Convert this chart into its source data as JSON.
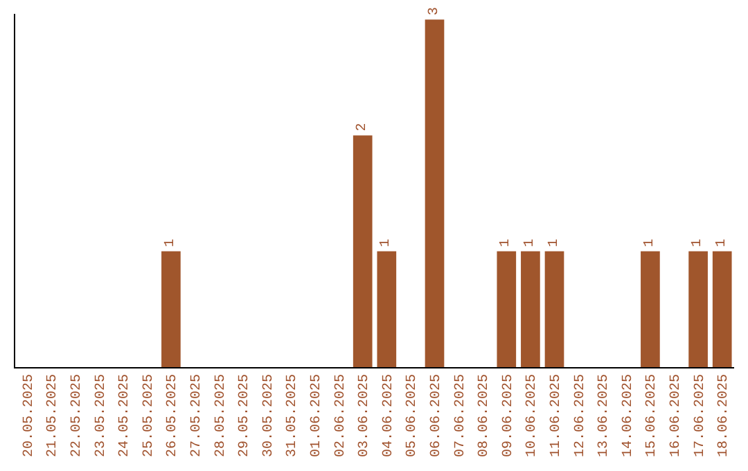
{
  "chart_data": {
    "type": "bar",
    "categories": [
      "20.05.2025",
      "21.05.2025",
      "22.05.2025",
      "23.05.2025",
      "24.05.2025",
      "25.05.2025",
      "26.05.2025",
      "27.05.2025",
      "28.05.2025",
      "29.05.2025",
      "30.05.2025",
      "31.05.2025",
      "01.06.2025",
      "02.06.2025",
      "03.06.2025",
      "04.06.2025",
      "05.06.2025",
      "06.06.2025",
      "07.06.2025",
      "08.06.2025",
      "09.06.2025",
      "10.06.2025",
      "11.06.2025",
      "12.06.2025",
      "13.06.2025",
      "14.06.2025",
      "15.06.2025",
      "16.06.2025",
      "17.06.2025",
      "18.06.2025"
    ],
    "values": [
      0,
      0,
      0,
      0,
      0,
      0,
      1,
      0,
      0,
      0,
      0,
      0,
      0,
      0,
      2,
      1,
      0,
      3,
      0,
      0,
      1,
      1,
      1,
      0,
      0,
      0,
      1,
      0,
      1,
      1
    ],
    "value_labels": [
      null,
      null,
      null,
      null,
      null,
      null,
      "1",
      null,
      null,
      null,
      null,
      null,
      null,
      null,
      "2",
      "1",
      null,
      "3",
      null,
      null,
      "1",
      "1",
      "1",
      null,
      null,
      null,
      "1",
      null,
      "1",
      "1"
    ],
    "color": "#a0562c",
    "ylim": [
      0,
      3.05
    ],
    "tick_labels": "x",
    "legend": false
  }
}
